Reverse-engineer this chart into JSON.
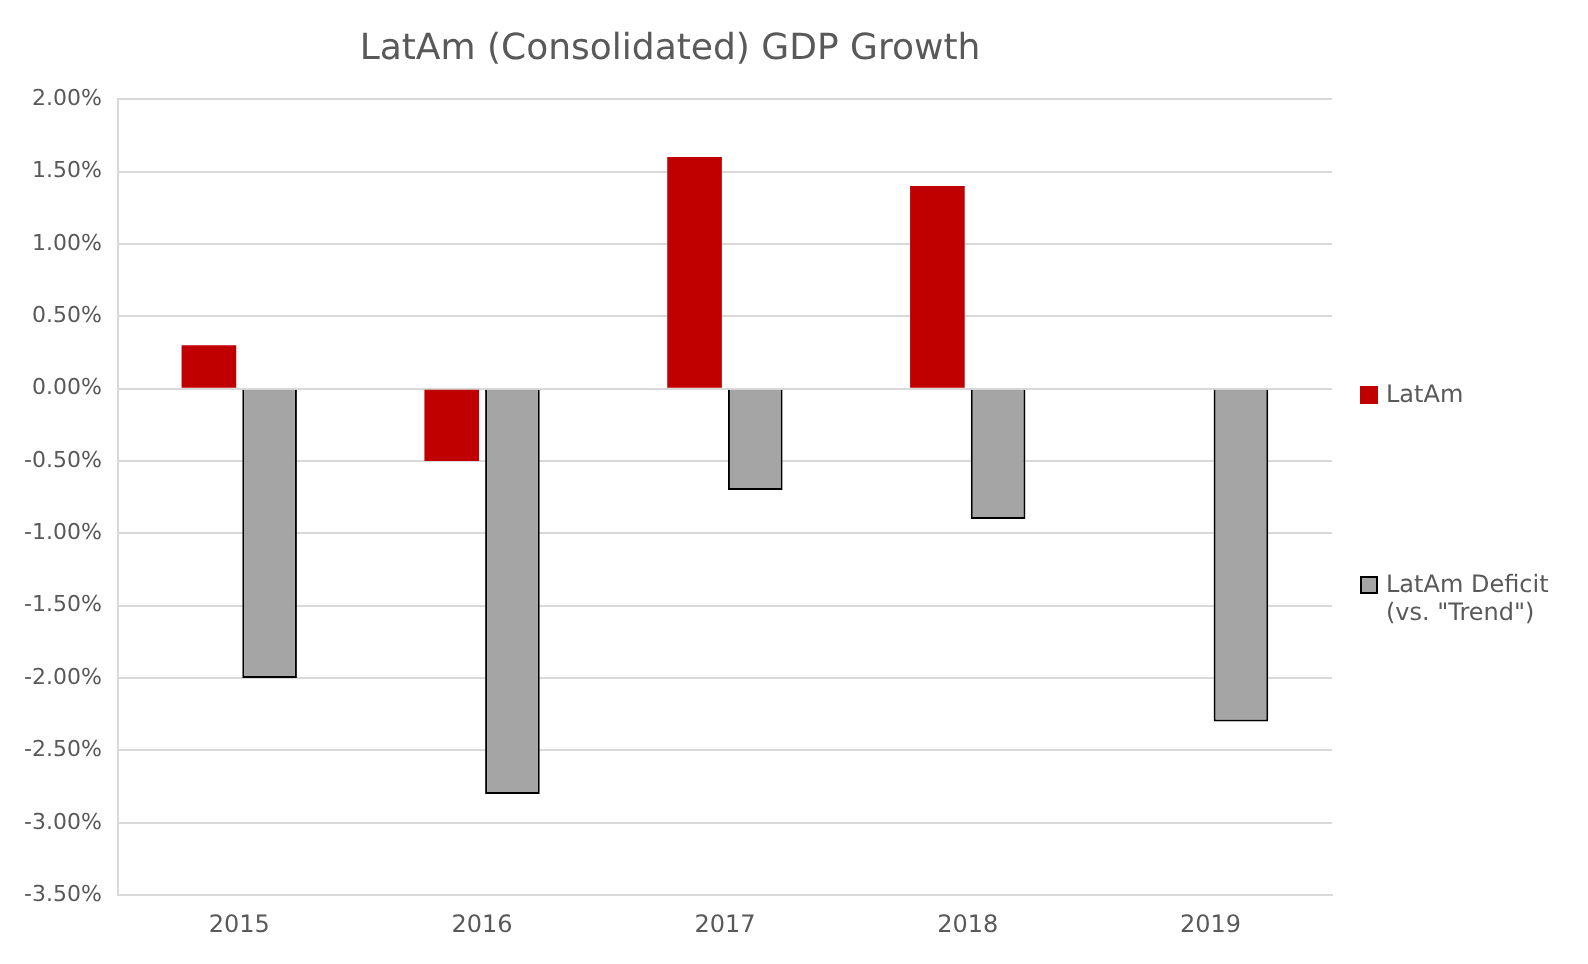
{
  "chart_data": {
    "type": "bar",
    "title": "LatAm (Consolidated) GDP Growth",
    "categories": [
      "2015",
      "2016",
      "2017",
      "2018",
      "2019"
    ],
    "series": [
      {
        "name": "LatAm",
        "color": "#c00000",
        "values": [
          0.3,
          -0.5,
          1.6,
          1.4,
          null
        ]
      },
      {
        "name": "LatAm Deficit (vs. \"Trend\")",
        "color": "#a5a5a5",
        "values": [
          -2.0,
          -2.8,
          -0.7,
          -0.9,
          -2.3
        ]
      }
    ],
    "ylim": [
      -3.5,
      2
    ],
    "yticks": [
      {
        "value": -3.5,
        "label": "-3.50%"
      },
      {
        "value": -3,
        "label": "-3.00%"
      },
      {
        "value": -2.5,
        "label": "-2.50%"
      },
      {
        "value": -2,
        "label": "-2.00%"
      },
      {
        "value": -1.5,
        "label": "-1.50%"
      },
      {
        "value": -1,
        "label": "-1.00%"
      },
      {
        "value": -0.5,
        "label": "-0.50%"
      },
      {
        "value": 0,
        "label": "0.00%"
      },
      {
        "value": 0.5,
        "label": "0.50%"
      },
      {
        "value": 1,
        "label": "1.00%"
      },
      {
        "value": 1.5,
        "label": "1.50%"
      },
      {
        "value": 2,
        "label": "2.00%"
      }
    ],
    "grid": "y",
    "legend": "right"
  }
}
